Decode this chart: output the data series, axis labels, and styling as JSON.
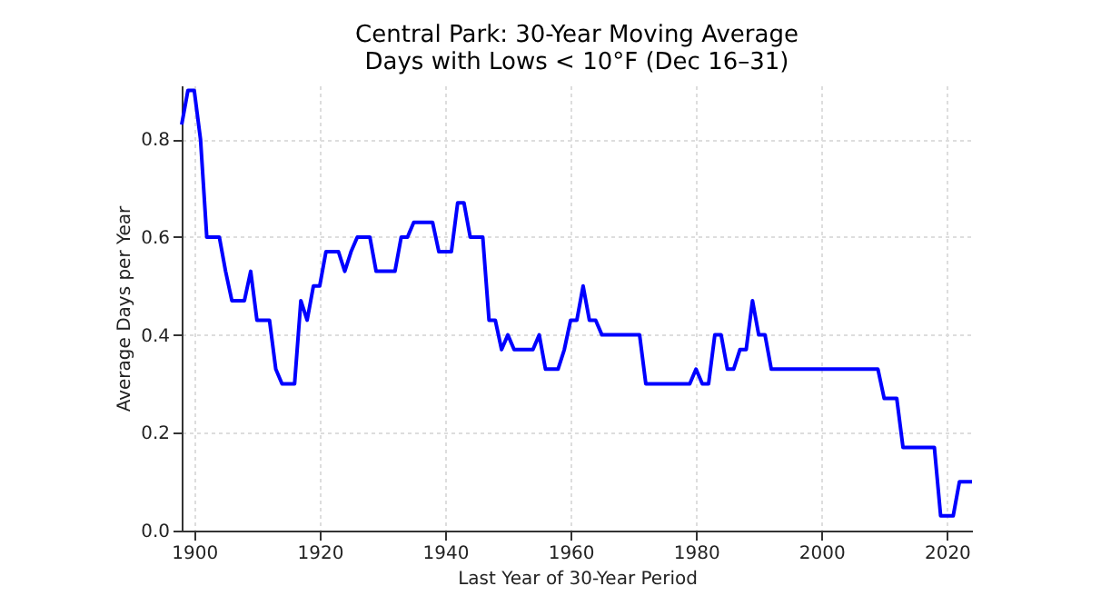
{
  "chart_data": {
    "type": "line",
    "title": "Central Park: 30-Year Moving Average",
    "subtitle": "Days with Lows < 10°F (Dec 16–31)",
    "xlabel": "Last Year of 30-Year Period",
    "ylabel": "Average Days per Year",
    "x": [
      1898,
      1899,
      1900,
      1901,
      1902,
      1903,
      1904,
      1905,
      1906,
      1907,
      1908,
      1909,
      1910,
      1911,
      1912,
      1913,
      1914,
      1915,
      1916,
      1917,
      1918,
      1919,
      1920,
      1921,
      1922,
      1923,
      1924,
      1925,
      1926,
      1927,
      1928,
      1929,
      1930,
      1931,
      1932,
      1933,
      1934,
      1935,
      1936,
      1937,
      1938,
      1939,
      1940,
      1941,
      1942,
      1943,
      1944,
      1945,
      1946,
      1947,
      1948,
      1949,
      1950,
      1951,
      1952,
      1953,
      1954,
      1955,
      1956,
      1957,
      1958,
      1959,
      1960,
      1961,
      1962,
      1963,
      1964,
      1965,
      1966,
      1967,
      1968,
      1969,
      1970,
      1971,
      1972,
      1973,
      1974,
      1975,
      1976,
      1977,
      1978,
      1979,
      1980,
      1981,
      1982,
      1983,
      1984,
      1985,
      1986,
      1987,
      1988,
      1989,
      1990,
      1991,
      1992,
      1993,
      1994,
      1995,
      1996,
      1997,
      1998,
      1999,
      2000,
      2001,
      2002,
      2003,
      2004,
      2005,
      2006,
      2007,
      2008,
      2009,
      2010,
      2011,
      2012,
      2013,
      2014,
      2015,
      2016,
      2017,
      2018,
      2019,
      2020,
      2021,
      2022,
      2023,
      2024
    ],
    "series": [
      {
        "color": "#0000ff",
        "values": [
          0.83,
          0.9,
          0.9,
          0.8,
          0.6,
          0.6,
          0.6,
          0.53,
          0.47,
          0.47,
          0.47,
          0.53,
          0.43,
          0.43,
          0.43,
          0.33,
          0.3,
          0.3,
          0.3,
          0.47,
          0.43,
          0.5,
          0.5,
          0.57,
          0.57,
          0.57,
          0.53,
          0.57,
          0.6,
          0.6,
          0.6,
          0.53,
          0.53,
          0.53,
          0.53,
          0.6,
          0.6,
          0.63,
          0.63,
          0.63,
          0.63,
          0.57,
          0.57,
          0.57,
          0.67,
          0.67,
          0.6,
          0.6,
          0.6,
          0.43,
          0.43,
          0.37,
          0.4,
          0.37,
          0.37,
          0.37,
          0.37,
          0.4,
          0.33,
          0.33,
          0.33,
          0.37,
          0.43,
          0.43,
          0.5,
          0.43,
          0.43,
          0.4,
          0.4,
          0.4,
          0.4,
          0.4,
          0.4,
          0.4,
          0.3,
          0.3,
          0.3,
          0.3,
          0.3,
          0.3,
          0.3,
          0.3,
          0.33,
          0.3,
          0.3,
          0.4,
          0.4,
          0.33,
          0.33,
          0.37,
          0.37,
          0.47,
          0.4,
          0.4,
          0.33,
          0.33,
          0.33,
          0.33,
          0.33,
          0.33,
          0.33,
          0.33,
          0.33,
          0.33,
          0.33,
          0.33,
          0.33,
          0.33,
          0.33,
          0.33,
          0.33,
          0.33,
          0.27,
          0.27,
          0.27,
          0.17,
          0.17,
          0.17,
          0.17,
          0.17,
          0.17,
          0.03,
          0.03,
          0.03,
          0.1,
          0.1,
          0.1
        ]
      }
    ],
    "xlim": [
      1898,
      2024
    ],
    "xticks": [
      1900,
      1920,
      1940,
      1960,
      1980,
      2000,
      2020
    ],
    "ylim": [
      0,
      0.91
    ],
    "yticks": [
      {
        "value": 0,
        "label": "0.0"
      },
      0.2,
      0.4,
      0.6,
      0.8
    ],
    "grid": true,
    "line_style": "solid"
  }
}
